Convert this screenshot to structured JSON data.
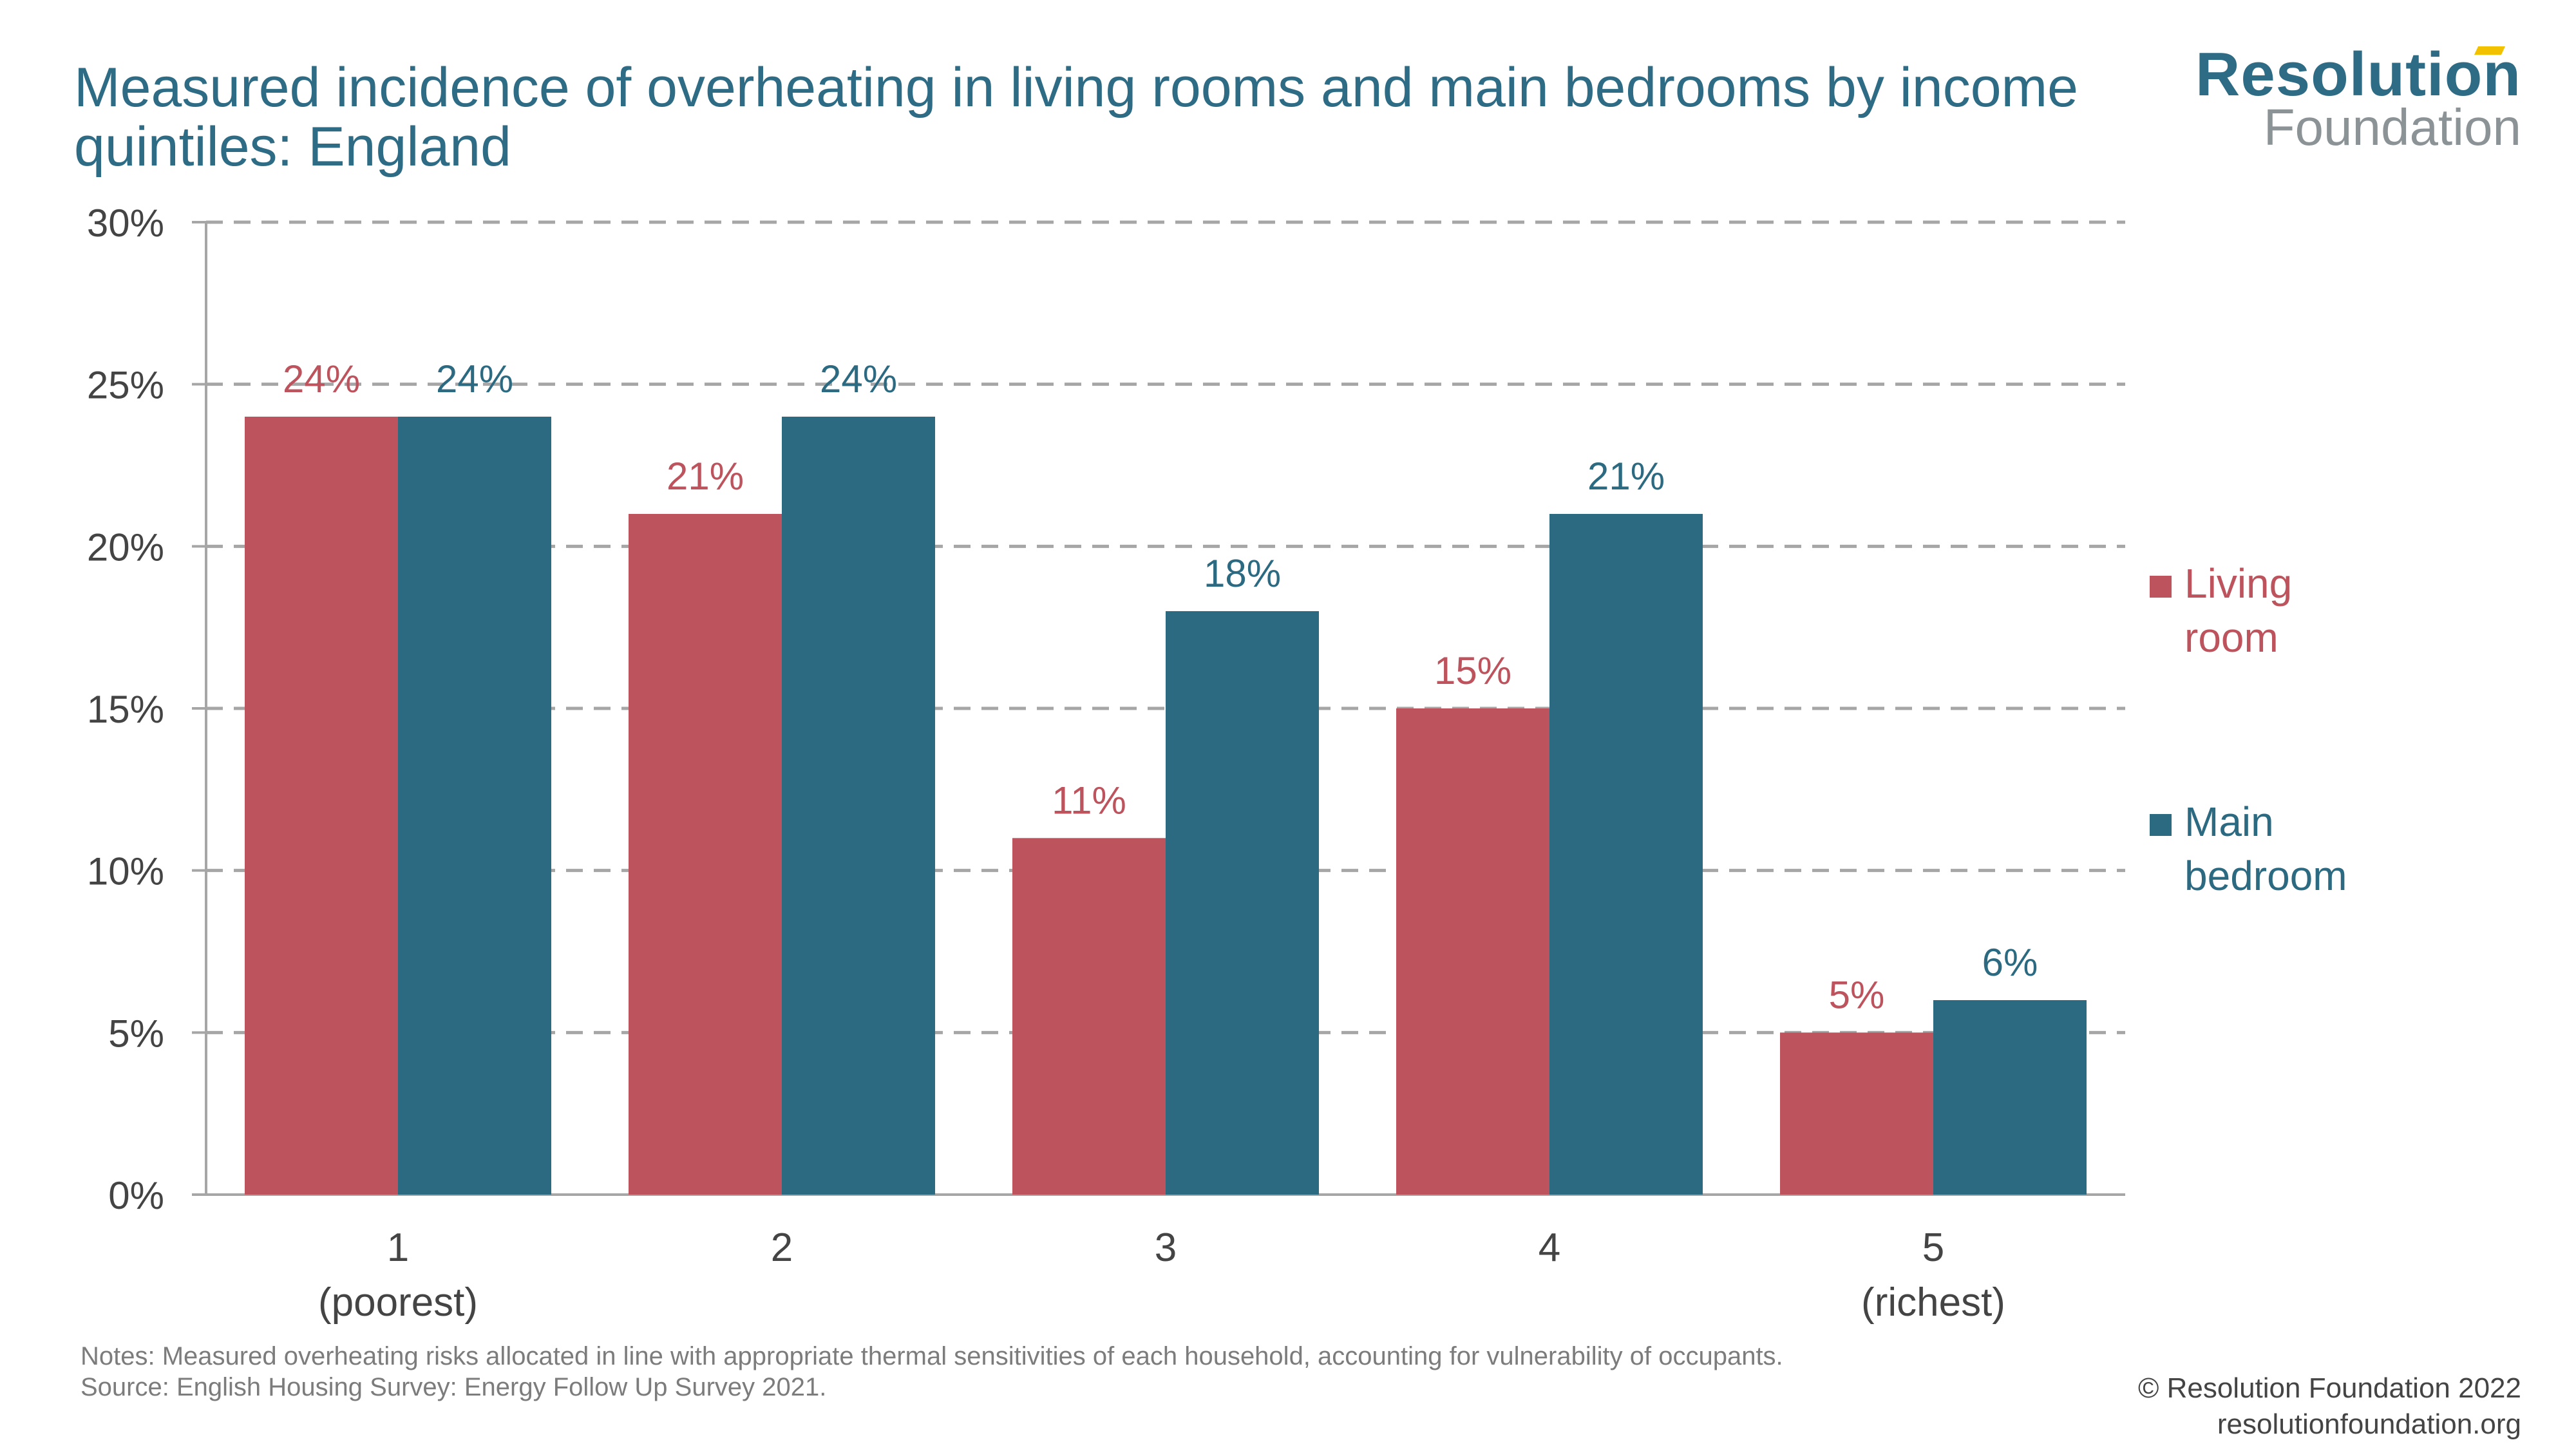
{
  "title": "Measured incidence of overheating in living rooms and main bedrooms by income quintiles: England",
  "logo": {
    "line1": "Resolution",
    "line2": "Foundation"
  },
  "notes": "Notes: Measured overheating risks allocated in line with appropriate thermal sensitivities of each household, accounting for vulnerability of occupants.",
  "source": "Source: English Housing Survey: Energy Follow Up Survey 2021.",
  "credit": {
    "line1": "© Resolution Foundation 2022",
    "line2": "resolutionfoundation.org"
  },
  "colors": {
    "living_room": "#bd535c",
    "main_bedroom": "#2c6a82",
    "title": "#2e6b84"
  },
  "chart_data": {
    "type": "bar",
    "title": "Measured incidence of overheating in living rooms and main bedrooms by income quintiles: England",
    "categories": [
      [
        "1",
        "(poorest)"
      ],
      [
        "2"
      ],
      [
        "3"
      ],
      [
        "4"
      ],
      [
        "5",
        "(richest)"
      ]
    ],
    "series": [
      {
        "name": "Living room",
        "legend_lines": [
          "Living",
          "room"
        ],
        "color": "#bd535c",
        "values": [
          24,
          21,
          11,
          15,
          5
        ],
        "labels": [
          "24%",
          "21%",
          "11%",
          "15%",
          "5%"
        ]
      },
      {
        "name": "Main bedroom",
        "legend_lines": [
          "Main",
          "bedroom"
        ],
        "color": "#2c6a82",
        "values": [
          24,
          24,
          18,
          21,
          6
        ],
        "labels": [
          "24%",
          "24%",
          "18%",
          "21%",
          "6%"
        ]
      }
    ],
    "ylim": [
      0,
      30
    ],
    "yticks": [
      "0%",
      "5%",
      "10%",
      "15%",
      "20%",
      "25%",
      "30%"
    ],
    "xlabel": "",
    "ylabel": "",
    "grid": true,
    "legend": "right"
  }
}
